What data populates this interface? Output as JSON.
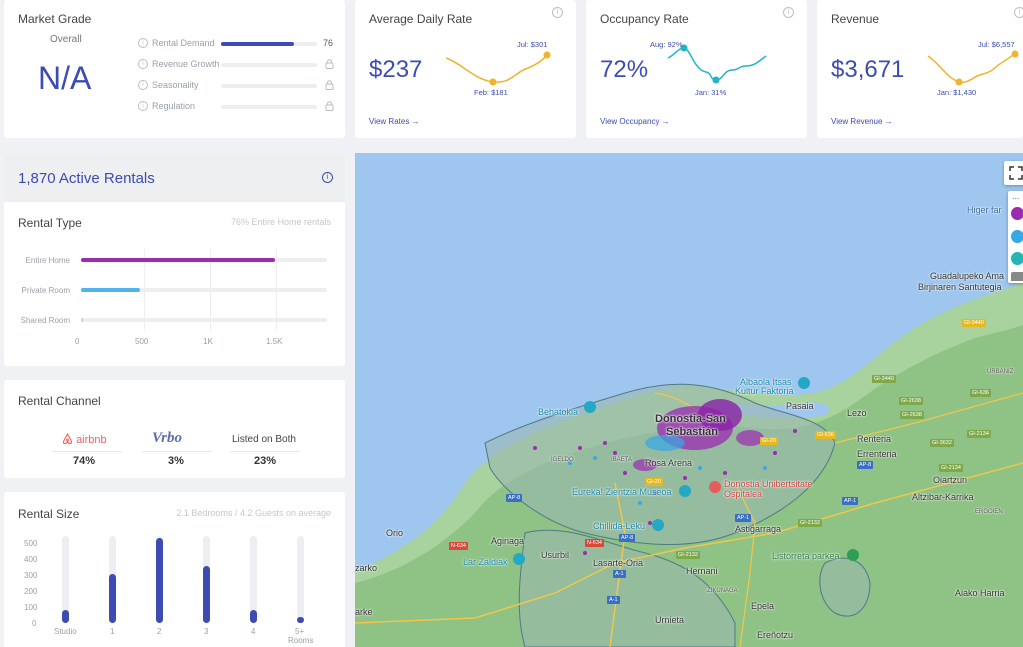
{
  "market_grade": {
    "title": "Market Grade",
    "overall_label": "Overall",
    "grade": "N/A",
    "rows": [
      {
        "label": "Rental Demand",
        "value": "76",
        "fill_fraction": 0.76
      },
      {
        "label": "Revenue Growth",
        "locked": true
      },
      {
        "label": "Seasonality",
        "locked": true
      },
      {
        "label": "Regulation",
        "locked": true
      }
    ]
  },
  "kpis": [
    {
      "title": "Average Daily Rate",
      "value": "$237",
      "link": "View Rates →",
      "high_label": "Jul: $301",
      "low_label": "Feb: $181",
      "color": "#f2b230"
    },
    {
      "title": "Occupancy Rate",
      "value": "72%",
      "link": "View Occupancy →",
      "high_label": "Aug: 92%",
      "low_label": "Jan: 31%",
      "color": "#1fb5c7"
    },
    {
      "title": "Revenue",
      "value": "$3,671",
      "link": "View Revenue →",
      "high_label": "Jul: $6,557",
      "low_label": "Jan: $1,430",
      "color": "#f2b230"
    }
  ],
  "active_rentals": {
    "title": "1,870 Active Rentals"
  },
  "rental_type": {
    "title": "Rental Type",
    "summary": "76% Entire Home rentals",
    "rows": [
      {
        "label": "Entire Home",
        "value": 1422,
        "color": "#9b2bb0"
      },
      {
        "label": "Private Room",
        "value": 431,
        "color": "#4fb3ee"
      },
      {
        "label": "Shared Room",
        "value": 17,
        "color": "#cfd3d8"
      }
    ],
    "axis_max": 1800,
    "ticks": [
      "0",
      "500",
      "1K",
      "1.5K"
    ]
  },
  "rental_channel": {
    "title": "Rental Channel",
    "items": [
      {
        "name": "airbnb",
        "percent": "74%"
      },
      {
        "name": "Vrbo",
        "percent": "3%"
      },
      {
        "name": "Listed on Both",
        "percent": "23%"
      }
    ]
  },
  "rental_size": {
    "title": "Rental Size",
    "summary": "2.1 Bedrooms / 4.2 Guests on average",
    "y_ticks": [
      "500",
      "400",
      "300",
      "200",
      "100",
      "0"
    ],
    "axis_max": 550,
    "bars": [
      {
        "label": "Studio",
        "value": 82
      },
      {
        "label": "1",
        "value": 310
      },
      {
        "label": "2",
        "value": 540
      },
      {
        "label": "3",
        "value": 360
      },
      {
        "label": "4",
        "value": 82
      },
      {
        "label": "5+",
        "label2": "Rooms",
        "value": 28
      }
    ]
  },
  "map": {
    "labels": [
      "Higer far",
      "Guadalupeko Ama",
      "Birjinaren Santutegia",
      "Albaola Itsas",
      "Kultur Faktoria",
      "Pasaia",
      "Behatokia",
      "Donostia-San",
      "Sebastián",
      "Lezo",
      "Renteria",
      "Errenteria",
      "Oiartzun",
      "Altzibar-Karrika",
      "IGELDO",
      "IBAETA",
      "Rosa Arena",
      "Eureka! Zientzia Museoa",
      "Donostia Unibertsitate",
      "Ospitalea",
      "Chillida-Leku",
      "Astigarraga",
      "Orio",
      "Aginaga",
      "Usurbil",
      "Lar Zaldiak",
      "Lasarte-Oria",
      "Hernani",
      "Listorreta parkea",
      "ZIKUNAGA",
      "Epela",
      "Urnieta",
      "Ereñotzu",
      "Aiako Harria",
      "URBANIZ",
      "ERGOIEN",
      "zarko",
      "arke"
    ],
    "roads": [
      "GI-3440",
      "GI-636",
      "GI-2638",
      "GI-2134",
      "GI-3632",
      "GI-2134",
      "AP-8",
      "AP-8",
      "GI-20",
      "GI-20",
      "N-634",
      "GI-2132",
      "AP-1",
      "AP-1",
      "A-1",
      "GI-2132",
      "N-634",
      "GI-3440",
      "GI-2638",
      "GI-636",
      "AP-8",
      "A-1"
    ]
  }
}
